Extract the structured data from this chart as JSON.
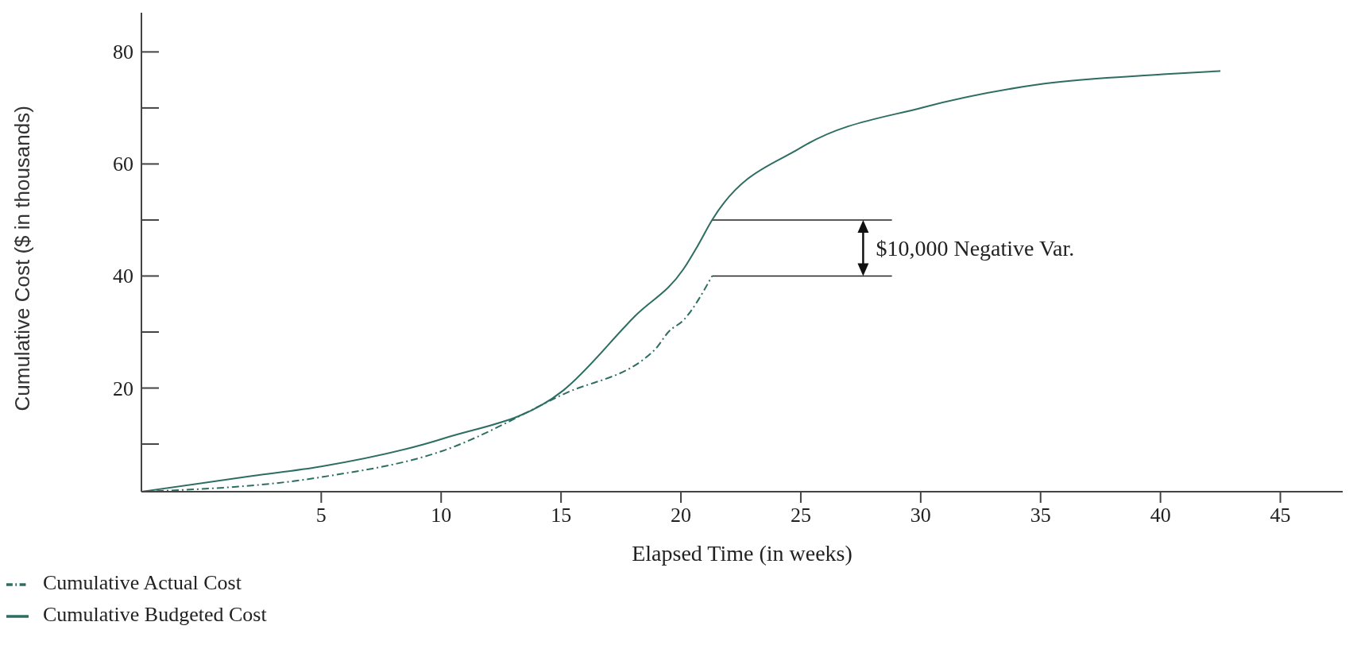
{
  "chart_data": {
    "type": "line",
    "xlabel": "Elapsed Time (in weeks)",
    "ylabel": "Cumulative Cost ($ in thousands)",
    "xlim": [
      -2.5,
      47.6
    ],
    "ylim": [
      1.5,
      87
    ],
    "xticks": [
      5,
      10,
      15,
      20,
      25,
      30,
      35,
      40,
      45
    ],
    "yticks": [
      20,
      40,
      60,
      80
    ],
    "grid": false,
    "legend": "bottom left",
    "marker": "none",
    "series": [
      {
        "name": "Cumulative Budgeted Cost",
        "color": "#2e6e62",
        "line_style": "solid",
        "x": [
          -2.5,
          2.1,
          5,
          10.1,
          15.1,
          18.1,
          20.1,
          20.7,
          21.3,
          25,
          30.1,
          35.1,
          40.1,
          42.5
        ],
        "values": [
          1.5,
          4.3,
          6,
          11,
          19.6,
          32.9,
          41.2,
          45.4,
          50,
          62.9,
          70.1,
          74.3,
          76,
          76.6
        ]
      },
      {
        "name": "Cumulative Actual Cost",
        "color": "#2e6e62",
        "line_style": "dashed",
        "x": [
          -2.5,
          5,
          10,
          15.1,
          18.9,
          19.5,
          20.1,
          21.3
        ],
        "values": [
          1.5,
          4.1,
          8.7,
          18.9,
          26.8,
          30.1,
          32.1,
          40
        ]
      }
    ],
    "ref_lines": [
      {
        "axis": "y",
        "value": 50,
        "color": "#222222"
      },
      {
        "axis": "y",
        "value": 40,
        "color": "#222222"
      }
    ],
    "annotations": [
      "$10,000 Negative Var."
    ]
  }
}
